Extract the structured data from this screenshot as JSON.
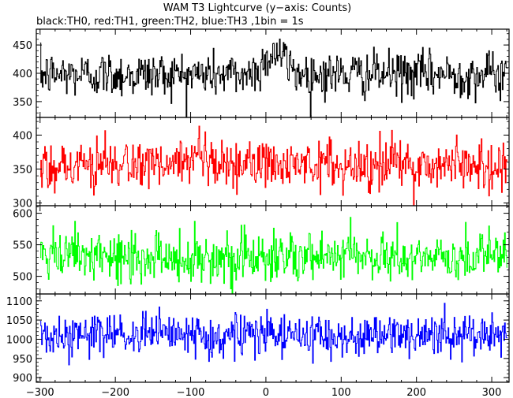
{
  "chart_data": {
    "type": "line",
    "title": "WAM T3 Lightcurve (y−axis: Counts)",
    "subtitle": "black:TH0, red:TH1, green:TH2, blue:TH3 ,1bin = 1s",
    "xlabel": "",
    "ylabel": "",
    "xlim": [
      -305,
      323
    ],
    "x_ticks": [
      -300,
      -200,
      -100,
      0,
      100,
      200,
      300
    ],
    "x_tick_labels": [
      "−300",
      "−200",
      "−100",
      "0",
      "100",
      "200",
      "300"
    ],
    "grid": false,
    "panels": [
      {
        "name": "TH0",
        "color": "#000000",
        "ylim": [
          322,
          478
        ],
        "y_ticks": [
          350,
          400,
          450
        ],
        "mean": 398,
        "noise_sigma": 20,
        "flare": {
          "peak_x": 12,
          "amplitude": 38,
          "width": 14
        },
        "x_start": -300,
        "x_end": 320
      },
      {
        "name": "TH1",
        "color": "#ff0000",
        "ylim": [
          296,
          426
        ],
        "y_ticks": [
          300,
          350,
          400
        ],
        "mean": 356,
        "noise_sigma": 19,
        "x_start": -300,
        "x_end": 320
      },
      {
        "name": "TH2",
        "color": "#00ff00",
        "ylim": [
          472,
          612
        ],
        "y_ticks": [
          500,
          550,
          600
        ],
        "mean": 530,
        "noise_sigma": 20,
        "x_start": -300,
        "x_end": 320
      },
      {
        "name": "TH3",
        "color": "#0000ff",
        "ylim": [
          888,
          1118
        ],
        "y_ticks": [
          900,
          950,
          1000,
          1050,
          1100
        ],
        "mean": 1010,
        "noise_sigma": 28,
        "x_start": -300,
        "x_end": 320
      }
    ]
  }
}
